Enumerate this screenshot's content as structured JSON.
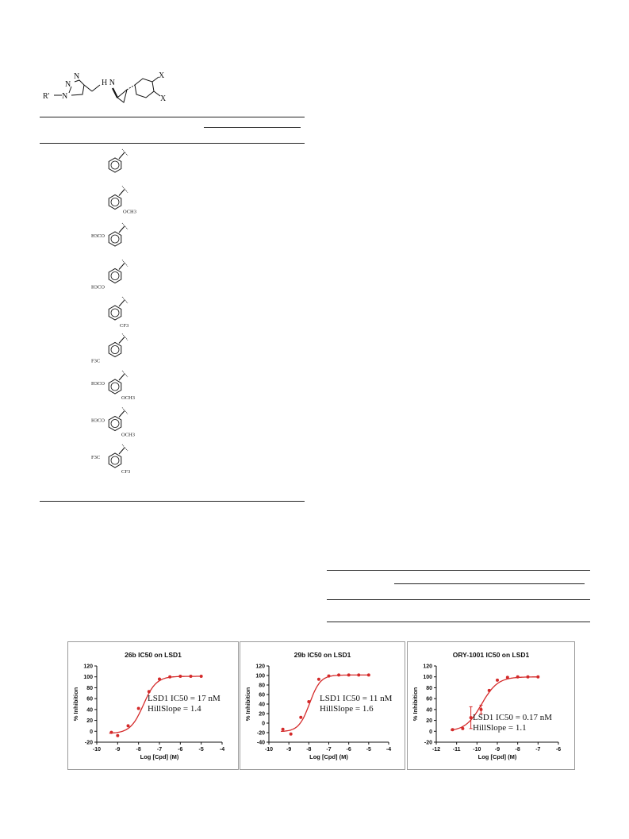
{
  "scaffold": {
    "r_group": "R'",
    "triazole_n": [
      "N",
      "N",
      "N"
    ],
    "amine": "H N",
    "aryl_sub": [
      "X",
      "X"
    ]
  },
  "substituents": [
    {
      "id": "phenyl",
      "labels": []
    },
    {
      "id": "2-methoxyphenyl",
      "labels": [
        "OCH3"
      ]
    },
    {
      "id": "3-methoxyphenyl",
      "labels": [
        "H3CO"
      ]
    },
    {
      "id": "4-methoxyphenyl",
      "labels": [
        "H3CO"
      ]
    },
    {
      "id": "3-trifluoromethylphenyl",
      "labels": [
        "CF3"
      ]
    },
    {
      "id": "4-trifluoromethylphenyl",
      "labels": [
        "F3C"
      ]
    },
    {
      "id": "2,5-dimethoxyphenyl",
      "labels": [
        "H3CO",
        "OCH3"
      ]
    },
    {
      "id": "3,5-dimethoxyphenyl",
      "labels": [
        "H3CO",
        "OCH3"
      ]
    },
    {
      "id": "3,5-bis-trifluoromethylphenyl",
      "labels": [
        "F3C",
        "CF3"
      ]
    }
  ],
  "chart_data": [
    {
      "type": "scatter",
      "title": "26b IC50 on LSD1",
      "xlabel": "Log [Cpd] (M)",
      "ylabel": "% Inhibition",
      "xlim": [
        -10,
        -4
      ],
      "ylim": [
        -20,
        120
      ],
      "xticks": [
        -10,
        -9,
        -8,
        -7,
        -6,
        -5,
        -4
      ],
      "yticks": [
        -20,
        0,
        20,
        40,
        60,
        80,
        100,
        120
      ],
      "points": [
        {
          "x": -9.3,
          "y": -2
        },
        {
          "x": -9.0,
          "y": -8
        },
        {
          "x": -8.5,
          "y": 10
        },
        {
          "x": -8.0,
          "y": 42
        },
        {
          "x": -7.5,
          "y": 73
        },
        {
          "x": -7.0,
          "y": 96
        },
        {
          "x": -6.5,
          "y": 100
        },
        {
          "x": -6.0,
          "y": 101
        },
        {
          "x": -5.5,
          "y": 101
        },
        {
          "x": -5.0,
          "y": 101
        }
      ],
      "fit": {
        "bottom": -4,
        "top": 101,
        "log_ic50": -7.77,
        "hill": 1.4
      },
      "annotation": [
        "LSD1 IC50 = 17 nM",
        "HillSlope = 1.4"
      ],
      "color": "#d42a2a"
    },
    {
      "type": "scatter",
      "title": "29b IC50 on LSD1",
      "xlabel": "Log [Cpd] (M)",
      "ylabel": "% Inhibition",
      "xlim": [
        -10,
        -4
      ],
      "ylim": [
        -40,
        120
      ],
      "xticks": [
        -10,
        -9,
        -8,
        -7,
        -6,
        -5,
        -4
      ],
      "yticks": [
        -40,
        -20,
        0,
        20,
        40,
        60,
        80,
        100,
        120
      ],
      "points": [
        {
          "x": -9.3,
          "y": -13
        },
        {
          "x": -8.9,
          "y": -23
        },
        {
          "x": -8.4,
          "y": 12
        },
        {
          "x": -8.0,
          "y": 45
        },
        {
          "x": -7.5,
          "y": 92
        },
        {
          "x": -7.0,
          "y": 99
        },
        {
          "x": -6.5,
          "y": 101
        },
        {
          "x": -6.0,
          "y": 101
        },
        {
          "x": -5.5,
          "y": 101
        },
        {
          "x": -5.0,
          "y": 101
        }
      ],
      "fit": {
        "bottom": -18,
        "top": 101,
        "log_ic50": -7.96,
        "hill": 1.6
      },
      "annotation": [
        "LSD1 IC50 = 11 nM",
        "HillSlope = 1.6"
      ],
      "color": "#d42a2a"
    },
    {
      "type": "scatter",
      "title": "ORY-1001 IC50 on LSD1",
      "xlabel": "Log [Cpd] (M)",
      "ylabel": "% Inhibition",
      "xlim": [
        -12,
        -6
      ],
      "ylim": [
        -20,
        120
      ],
      "xticks": [
        -12,
        -11,
        -10,
        -9,
        -8,
        -7,
        -6
      ],
      "yticks": [
        -20,
        0,
        20,
        40,
        60,
        80,
        100,
        120
      ],
      "points": [
        {
          "x": -11.2,
          "y": 3
        },
        {
          "x": -10.7,
          "y": 5
        },
        {
          "x": -10.3,
          "y": 25,
          "err": 20
        },
        {
          "x": -9.8,
          "y": 40,
          "err": 8
        },
        {
          "x": -9.4,
          "y": 75
        },
        {
          "x": -9.0,
          "y": 94
        },
        {
          "x": -8.5,
          "y": 99
        },
        {
          "x": -8.0,
          "y": 100
        },
        {
          "x": -7.5,
          "y": 100
        },
        {
          "x": -7.0,
          "y": 100
        }
      ],
      "fit": {
        "bottom": 0,
        "top": 100,
        "log_ic50": -9.77,
        "hill": 1.1
      },
      "annotation": [
        "LSD1 IC50 = 0.17 nM",
        "HillSlope = 1.1"
      ],
      "color": "#d42a2a"
    }
  ]
}
